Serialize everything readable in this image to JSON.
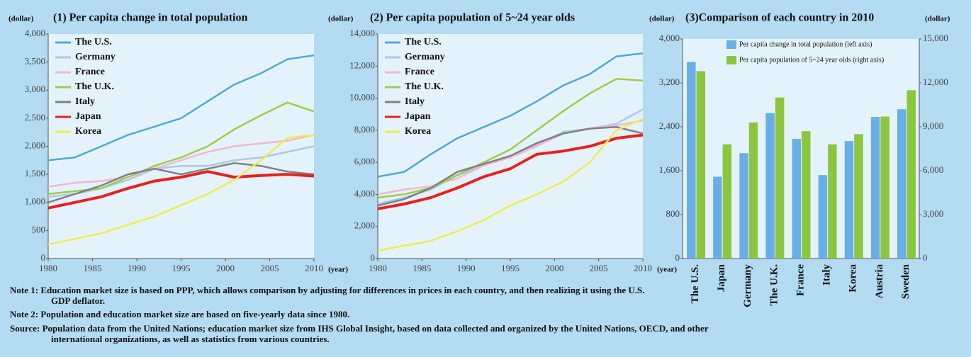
{
  "chart_data": [
    {
      "type": "line",
      "title": "(1) Per capita change in total population",
      "y_unit": "(dollar)",
      "x_unit": "(year)",
      "x": [
        1980,
        1983,
        1986,
        1989,
        1992,
        1995,
        1998,
        2001,
        2004,
        2007,
        2010
      ],
      "xlim": [
        1980,
        2010
      ],
      "xticks": [
        1980,
        1985,
        1990,
        1995,
        2000,
        2005,
        2010
      ],
      "ylim": [
        0,
        4000
      ],
      "yticks": [
        0,
        500,
        {
          "value": 1000,
          "label": "1,000"
        },
        {
          "value": 1500,
          "label": "1,500"
        },
        {
          "value": 2000,
          "label": "2,000"
        },
        {
          "value": 2500,
          "label": "2,500"
        },
        {
          "value": 3000,
          "label": "3,000"
        },
        {
          "value": 3500,
          "label": "3,500"
        },
        {
          "value": 4000,
          "label": "4,000"
        }
      ],
      "legend": "upper left",
      "series": [
        {
          "name": "The U.S.",
          "color": "#4aabd8",
          "values": [
            1750,
            1800,
            2000,
            2200,
            2350,
            2500,
            2800,
            3100,
            3300,
            3550,
            3620
          ]
        },
        {
          "name": "Germany",
          "color": "#a9c9ea",
          "values": [
            1100,
            1150,
            1250,
            1400,
            1600,
            1650,
            1650,
            1750,
            1800,
            1900,
            2000
          ]
        },
        {
          "name": "France",
          "color": "#f3b7d0",
          "values": [
            1280,
            1350,
            1380,
            1450,
            1600,
            1750,
            1900,
            2000,
            2050,
            2100,
            2200
          ]
        },
        {
          "name": "The U.K.",
          "color": "#9bcd4b",
          "values": [
            1150,
            1200,
            1250,
            1450,
            1650,
            1800,
            2000,
            2300,
            2550,
            2780,
            2620
          ]
        },
        {
          "name": "Italy",
          "color": "#808080",
          "values": [
            1000,
            1150,
            1300,
            1500,
            1600,
            1500,
            1600,
            1700,
            1650,
            1550,
            1500
          ]
        },
        {
          "name": "Japan",
          "color": "#e8201e",
          "values": [
            900,
            1000,
            1100,
            1250,
            1380,
            1450,
            1550,
            1450,
            1480,
            1500,
            1470
          ]
        },
        {
          "name": "Korea",
          "color": "#ecec4e",
          "values": [
            250,
            350,
            450,
            600,
            750,
            950,
            1150,
            1400,
            1750,
            2150,
            2200
          ]
        }
      ]
    },
    {
      "type": "line",
      "title": "(2) Per capita population of 5~24 year olds",
      "y_unit": "(dollar)",
      "x_unit": "(year)",
      "x": [
        1980,
        1983,
        1986,
        1989,
        1992,
        1995,
        1998,
        2001,
        2004,
        2007,
        2010
      ],
      "xlim": [
        1980,
        2010
      ],
      "xticks": [
        1980,
        1985,
        1990,
        1995,
        2000,
        2005,
        2010
      ],
      "ylim": [
        0,
        14000
      ],
      "yticks": [
        0,
        {
          "value": 2000,
          "label": "2,000"
        },
        {
          "value": 4000,
          "label": "4,000"
        },
        {
          "value": 6000,
          "label": "6,000"
        },
        {
          "value": 8000,
          "label": "8,000"
        },
        {
          "value": 10000,
          "label": "10,000"
        },
        {
          "value": 12000,
          "label": "12,000"
        },
        {
          "value": 14000,
          "label": "14,000"
        }
      ],
      "legend": "upper left",
      "series": [
        {
          "name": "The U.S.",
          "color": "#4aabd8",
          "values": [
            5100,
            5400,
            6500,
            7500,
            8200,
            8900,
            9800,
            10800,
            11500,
            12600,
            12800
          ]
        },
        {
          "name": "Germany",
          "color": "#a9c9ea",
          "values": [
            3400,
            3800,
            4300,
            5200,
            5800,
            6400,
            7100,
            7900,
            8100,
            8400,
            9300
          ]
        },
        {
          "name": "France",
          "color": "#f3b7d0",
          "values": [
            4000,
            4300,
            4500,
            5000,
            5800,
            6300,
            7000,
            7800,
            8100,
            8300,
            8600
          ]
        },
        {
          "name": "The U.K.",
          "color": "#9bcd4b",
          "values": [
            3800,
            4000,
            4400,
            5200,
            6000,
            6800,
            8000,
            9200,
            10300,
            11200,
            11100
          ]
        },
        {
          "name": "Italy",
          "color": "#808080",
          "values": [
            3300,
            3700,
            4400,
            5400,
            5900,
            6400,
            7200,
            7800,
            8100,
            8200,
            7800
          ]
        },
        {
          "name": "Japan",
          "color": "#e8201e",
          "values": [
            3100,
            3400,
            3800,
            4400,
            5100,
            5600,
            6500,
            6700,
            7000,
            7500,
            7700
          ]
        },
        {
          "name": "Korea",
          "color": "#ecec4e",
          "values": [
            500,
            800,
            1100,
            1700,
            2400,
            3300,
            4000,
            4800,
            6000,
            8000,
            8700
          ]
        }
      ]
    },
    {
      "type": "bar",
      "title": "(3)Comparison of each country in 2010",
      "y_unit": "(dollar)",
      "y2_unit": "(dollar)",
      "categories": [
        "The U.S.",
        "Japan",
        "Germany",
        "The U.K.",
        "France",
        "Italy",
        "Korea",
        "Austria",
        "Sweden"
      ],
      "ylim": [
        0,
        4000
      ],
      "yticks": [
        0,
        800,
        {
          "value": 1600,
          "label": "1,600"
        },
        {
          "value": 2400,
          "label": "2,400"
        },
        {
          "value": 3200,
          "label": "3,200"
        },
        {
          "value": 4000,
          "label": "4,000"
        }
      ],
      "y2lim": [
        0,
        15000
      ],
      "y2ticks": [
        0,
        {
          "value": 3000,
          "label": "3,000"
        },
        {
          "value": 6000,
          "label": "6,000"
        },
        {
          "value": 9000,
          "label": "9,000"
        },
        {
          "value": 12000,
          "label": "12,000"
        },
        {
          "value": 15000,
          "label": "15,000"
        }
      ],
      "legend": "upper right",
      "series": [
        {
          "name": "Per capita change in total population (left axis)",
          "color": "#6aaee6",
          "values": [
            3580,
            1490,
            1920,
            2650,
            2180,
            1520,
            2140,
            2580,
            2720
          ]
        },
        {
          "name": "Per capita population of 5~24 year olds (right axis)",
          "color": "#8cc63f",
          "axis": "y2",
          "values": [
            12800,
            7800,
            9300,
            11000,
            8700,
            7800,
            8500,
            9700,
            11500
          ]
        }
      ]
    }
  ],
  "notes": [
    "Note 1: Education market size is based on PPP, which allows comparison by adjusting for differences in prices in each country, and then realizing it using the U.S. GDP deflator.",
    "Note 2: Population and education market size are based on five-yearly data since 1980.",
    "Source: Population data from the United Nations; education market size from IHS Global Insight, based on data collected and organized by the United Nations, OECD, and other international organizations, as well as statistics from various countries."
  ]
}
